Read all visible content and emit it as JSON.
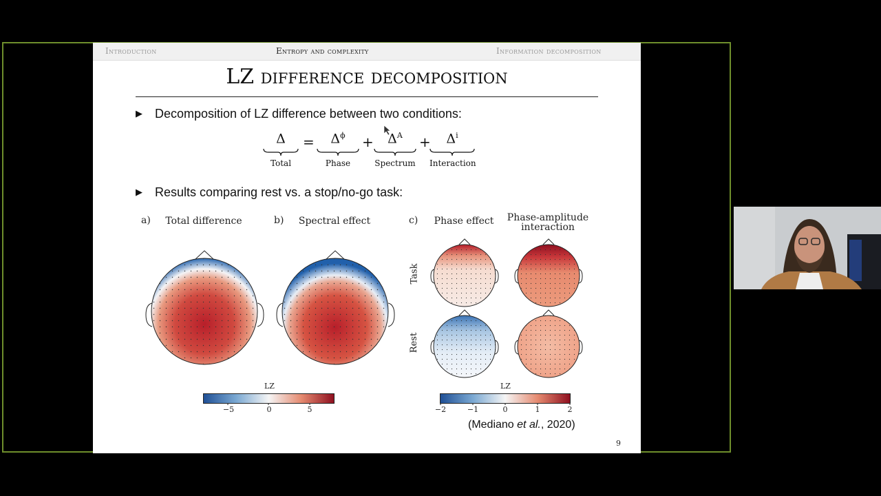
{
  "nav": {
    "left": "Introduction",
    "center": "Entropy and complexity",
    "right": "Information decomposition"
  },
  "slide": {
    "title": "LZ difference decomposition",
    "bullet1": "Decomposition of LZ difference between two conditions:",
    "bullet2": "Results comparing rest vs. a stop/no-go task:",
    "page_number": "9",
    "citation_pre": "(Mediano ",
    "citation_em": "et al.",
    "citation_post": ", 2020)"
  },
  "equation": {
    "symbol": "Δ",
    "terms": [
      {
        "sup": "",
        "label": "Total"
      },
      {
        "sup": "ϕ",
        "label": "Phase"
      },
      {
        "sup": "A",
        "label": "Spectrum"
      },
      {
        "sup": "i",
        "label": "Interaction"
      }
    ],
    "equals": "=",
    "plus": "+"
  },
  "panels": {
    "a_label": "a)",
    "a_title": "Total difference",
    "b_label": "b)",
    "b_title": "Spectral effect",
    "c_label": "c)",
    "c_title1": "Phase effect",
    "c_title2_line1": "Phase-amplitude",
    "c_title2_line2": "interaction",
    "row_task": "Task",
    "row_rest": "Rest"
  },
  "colorbars": [
    {
      "title": "LZ",
      "ticks": [
        "−5",
        "0",
        "5"
      ]
    },
    {
      "title": "LZ",
      "ticks": [
        "−2",
        "−1",
        "0",
        "1",
        "2"
      ]
    }
  ],
  "colors": {
    "frame": "#6f8f2c",
    "blue": "#1f5fa8",
    "red": "#b2182b"
  }
}
